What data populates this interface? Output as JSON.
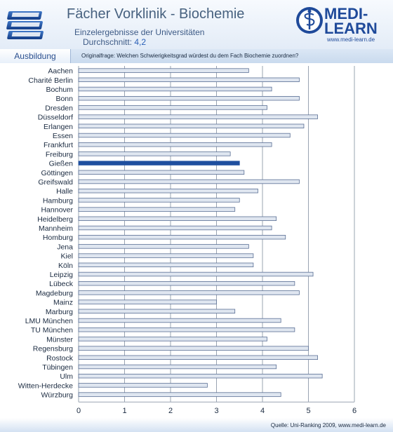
{
  "header": {
    "title": "Fächer Vorklinik - Biochemie",
    "subtitle": "Einzelergebnisse der Universitäten",
    "average_label": "Durchschnitt:",
    "average_value": "4,2",
    "tab_label": "Ausbildung",
    "question": "Originalfrage: Welchen Schwierigkeitsgrad würdest du dem Fach Biochemie zuordnen?"
  },
  "logo": {
    "line1": "MEDI-",
    "line2": "LEARN",
    "url": "www.medi-learn.de",
    "icon": "caduceus-icon",
    "books_icon": "books-icon"
  },
  "footer": {
    "source": "Quelle: Uni-Ranking 2009, www.medi-learn.de"
  },
  "colors": {
    "bar_fill": "#dfe6f0",
    "bar_border": "#5a6f94",
    "highlight_fill": "#1f4f9f",
    "grid": "#9aa4b2",
    "logo_blue": "#1f4a9a"
  },
  "chart_data": {
    "type": "bar",
    "orientation": "horizontal",
    "categories": [
      "Aachen",
      "Charité Berlin",
      "Bochum",
      "Bonn",
      "Dresden",
      "Düsseldorf",
      "Erlangen",
      "Essen",
      "Frankfurt",
      "Freiburg",
      "Gießen",
      "Göttingen",
      "Greifswald",
      "Halle",
      "Hamburg",
      "Hannover",
      "Heidelberg",
      "Mannheim",
      "Homburg",
      "Jena",
      "Kiel",
      "Köln",
      "Leipzig",
      "Lübeck",
      "Magdeburg",
      "Mainz",
      "Marburg",
      "LMU München",
      "TU München",
      "Münster",
      "Regensburg",
      "Rostock",
      "Tübingen",
      "Ulm",
      "Witten-Herdecke",
      "Würzburg"
    ],
    "values": [
      3.7,
      4.8,
      4.2,
      4.8,
      4.1,
      5.2,
      4.9,
      4.6,
      4.2,
      3.3,
      3.5,
      3.6,
      4.8,
      3.9,
      3.5,
      3.4,
      4.3,
      4.2,
      4.5,
      3.7,
      3.8,
      3.8,
      5.1,
      4.7,
      4.8,
      3.0,
      3.4,
      4.4,
      4.7,
      4.1,
      5.0,
      5.2,
      4.3,
      5.3,
      2.8,
      4.4
    ],
    "highlight": "Gießen",
    "xlim": [
      0,
      6
    ],
    "xticks": [
      0,
      1,
      2,
      3,
      4,
      5,
      6
    ],
    "grid": true
  }
}
